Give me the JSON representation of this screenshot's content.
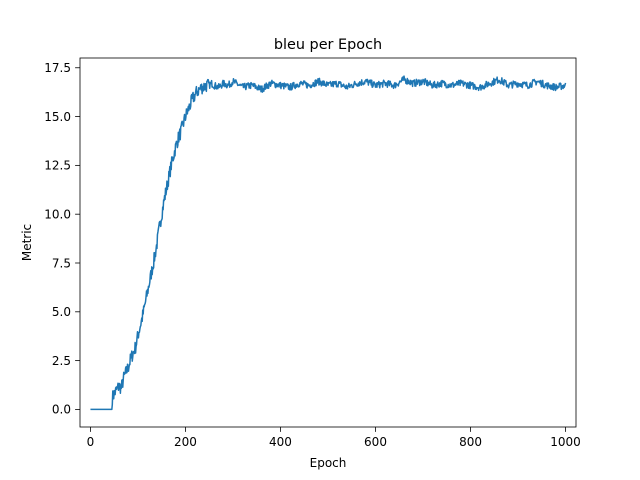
{
  "chart_data": {
    "type": "line",
    "title": "bleu per Epoch",
    "xlabel": "Epoch",
    "ylabel": "Metric",
    "xlim": [
      -22,
      1022
    ],
    "ylim": [
      -0.9,
      18.0
    ],
    "xticks": [
      0,
      200,
      400,
      600,
      800,
      1000
    ],
    "xtick_labels": [
      "0",
      "200",
      "400",
      "600",
      "800",
      "1000"
    ],
    "yticks": [
      0,
      2.5,
      5,
      7.5,
      10,
      12.5,
      15,
      17.5
    ],
    "ytick_labels": [
      "0.0",
      "2.5",
      "5.0",
      "7.5",
      "10.0",
      "12.5",
      "15.0",
      "17.5"
    ],
    "grid": false,
    "legend": "none",
    "series": [
      {
        "color": "#1f77b4",
        "x": [
          0,
          45,
          46,
          50,
          55,
          60,
          65,
          70,
          75,
          80,
          85,
          90,
          95,
          100,
          105,
          110,
          115,
          120,
          125,
          130,
          135,
          140,
          145,
          150,
          155,
          160,
          165,
          170,
          175,
          180,
          185,
          190,
          195,
          200,
          205,
          210,
          215,
          220,
          225,
          230,
          235,
          240,
          245,
          250,
          255,
          260,
          270,
          280,
          290,
          300,
          320,
          340,
          360,
          380,
          400,
          420,
          440,
          460,
          480,
          500,
          520,
          540,
          560,
          580,
          600,
          620,
          640,
          660,
          680,
          700,
          720,
          740,
          760,
          780,
          800,
          820,
          840,
          860,
          880,
          900,
          920,
          940,
          960,
          980,
          1000
        ],
        "y": [
          0.0,
          0.0,
          0.6,
          0.8,
          1.0,
          1.2,
          1.1,
          1.6,
          1.9,
          2.2,
          2.6,
          2.9,
          3.2,
          3.8,
          4.3,
          4.8,
          5.4,
          6.0,
          6.6,
          7.2,
          7.8,
          8.5,
          9.3,
          10.0,
          10.7,
          11.3,
          11.9,
          12.5,
          13.0,
          13.5,
          13.9,
          14.2,
          14.6,
          15.0,
          15.3,
          15.6,
          15.9,
          16.1,
          16.3,
          16.4,
          16.5,
          16.55,
          16.6,
          16.6,
          16.7,
          16.6,
          16.5,
          16.7,
          16.6,
          16.8,
          16.5,
          16.6,
          16.4,
          16.7,
          16.6,
          16.5,
          16.7,
          16.6,
          16.8,
          16.6,
          16.7,
          16.5,
          16.7,
          16.8,
          16.6,
          16.7,
          16.6,
          16.9,
          16.7,
          16.8,
          16.6,
          16.7,
          16.6,
          16.7,
          16.6,
          16.5,
          16.7,
          16.9,
          16.6,
          16.7,
          16.6,
          16.8,
          16.6,
          16.5,
          16.6
        ]
      }
    ]
  }
}
